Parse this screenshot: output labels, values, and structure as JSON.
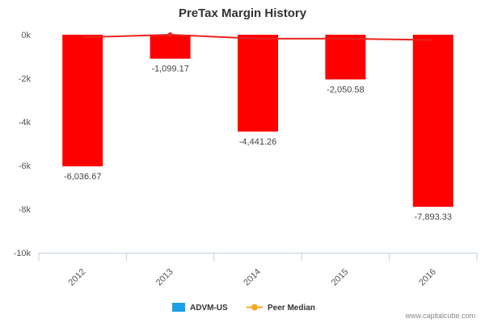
{
  "chart_data": {
    "type": "bar",
    "title": "PreTax Margin History",
    "categories": [
      "2012",
      "2013",
      "2014",
      "2015",
      "2016"
    ],
    "series": [
      {
        "name": "ADVM-US",
        "type": "bar",
        "values": [
          -6036.67,
          -1099.17,
          -4441.26,
          -2050.58,
          -7893.33
        ],
        "labels": [
          "-6,036.67",
          "-1,099.17",
          "-4,441.26",
          "-2,050.58",
          "-7,893.33"
        ]
      },
      {
        "name": "Peer Median",
        "type": "line",
        "values": [
          -120,
          0,
          -180,
          -180,
          -240
        ]
      }
    ],
    "yticks": [
      0,
      -2000,
      -4000,
      -6000,
      -8000,
      -10000
    ],
    "ytick_labels": [
      "0k",
      "-2k",
      "-4k",
      "-6k",
      "-8k",
      "-10k"
    ],
    "ylim": [
      -10000,
      0
    ],
    "grid": false,
    "legend": "bottom-center",
    "colors": {
      "bars": "#ff0000",
      "line": "#e8241f",
      "legend_bar": "#1aa0e8",
      "legend_line": "#f5a623"
    }
  },
  "credit": "www.capitalcube.com"
}
